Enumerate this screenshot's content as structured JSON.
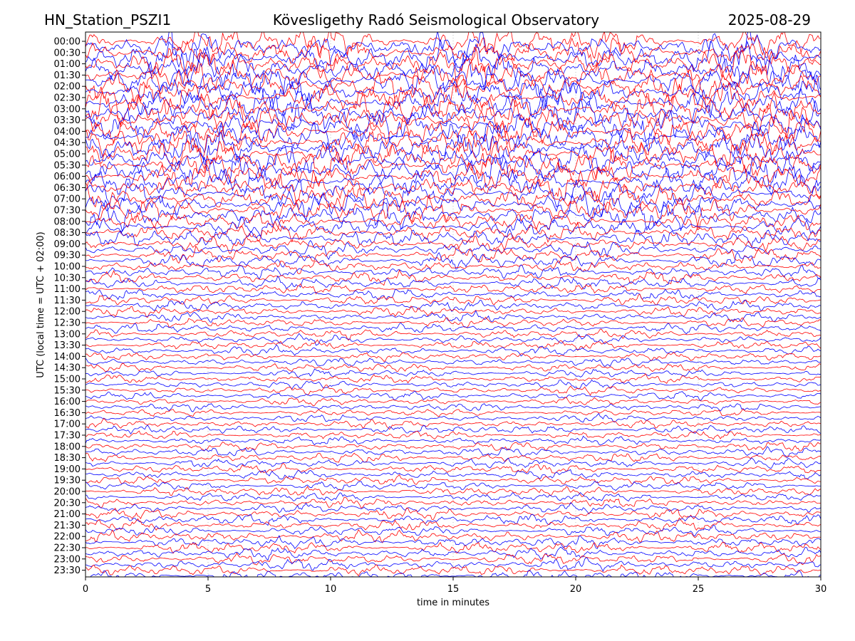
{
  "header": {
    "station": "HN_Station_PSZI1",
    "observatory": "Kövesligethy Radó Seismological Observatory",
    "date": "2025-08-29"
  },
  "chart_data": {
    "type": "line",
    "chart_kind": "seismic helicorder",
    "xlabel": "time in minutes",
    "ylabel": "UTC (local time = UTC + 02:00)",
    "xlim": [
      0,
      30
    ],
    "x_ticks": [
      0,
      5,
      10,
      15,
      20,
      25,
      30
    ],
    "grid": true,
    "row_interval_minutes": 15,
    "row_count": 96,
    "trace_colors": [
      "#ff0000",
      "#0000ff"
    ],
    "y_ticks": [
      "00:00",
      "00:30",
      "01:00",
      "01:30",
      "02:00",
      "02:30",
      "03:00",
      "03:30",
      "04:00",
      "04:30",
      "05:00",
      "05:30",
      "06:00",
      "06:30",
      "07:00",
      "07:30",
      "08:00",
      "08:30",
      "09:00",
      "09:30",
      "10:00",
      "10:30",
      "11:00",
      "11:30",
      "12:00",
      "12:30",
      "13:00",
      "13:30",
      "14:00",
      "14:30",
      "15:00",
      "15:30",
      "16:00",
      "16:30",
      "17:00",
      "17:30",
      "18:00",
      "18:30",
      "19:00",
      "19:30",
      "20:00",
      "20:30",
      "21:00",
      "21:30",
      "22:00",
      "22:30",
      "23:00",
      "23:30"
    ],
    "relative_amplitude_by_hour": [
      3.2,
      3.3,
      3.4,
      3.4,
      3.3,
      3.2,
      3.0,
      2.8,
      2.0,
      1.6,
      1.3,
      1.1,
      1.0,
      1.0,
      0.9,
      0.9,
      0.8,
      0.9,
      1.0,
      1.0,
      1.0,
      1.1,
      1.2,
      1.2
    ]
  }
}
